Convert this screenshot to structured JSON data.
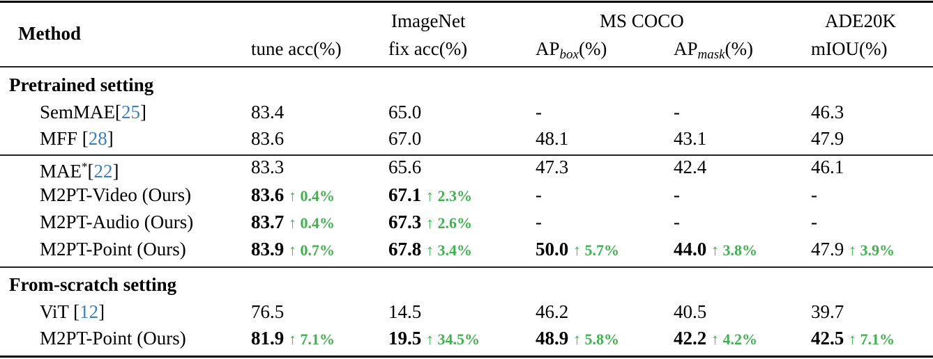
{
  "table": {
    "header": {
      "method": "Method",
      "groups": [
        {
          "label": "ImageNet"
        },
        {
          "label": "MS COCO"
        },
        {
          "label": "ADE20K"
        }
      ],
      "columns": [
        {
          "main": "tune acc",
          "sub": "",
          "unit": "(%)"
        },
        {
          "main": "fix acc",
          "sub": "",
          "unit": "(%)"
        },
        {
          "main": "AP",
          "sub": "box",
          "unit": "(%)"
        },
        {
          "main": "AP",
          "sub": "mask",
          "unit": "(%)"
        },
        {
          "main": "mIOU",
          "sub": "",
          "unit": "(%)"
        }
      ]
    },
    "sections": [
      {
        "title": "Pretrained setting",
        "rows": [
          {
            "name": "SemMAE",
            "sup": "",
            "cite": "25",
            "space": "",
            "cells": [
              {
                "v": "83.4"
              },
              {
                "v": "65.0"
              },
              {
                "v": "-"
              },
              {
                "v": "-"
              },
              {
                "v": "46.3"
              }
            ]
          },
          {
            "name": "MFF",
            "sup": "",
            "cite": "28",
            "space": " ",
            "cells": [
              {
                "v": "83.6"
              },
              {
                "v": "67.0"
              },
              {
                "v": "48.1"
              },
              {
                "v": "43.1"
              },
              {
                "v": "47.9"
              }
            ]
          },
          {
            "name": "MAE",
            "sup": "*",
            "cite": "22",
            "space": "",
            "cells": [
              {
                "v": "83.3"
              },
              {
                "v": "65.6"
              },
              {
                "v": "47.3"
              },
              {
                "v": "42.4"
              },
              {
                "v": "46.1"
              }
            ]
          },
          {
            "name": "M2PT-Video (Ours)",
            "cells": [
              {
                "v": "83.6",
                "bold": true,
                "gain": "0.4%"
              },
              {
                "v": "67.1",
                "bold": true,
                "gain": "2.3%"
              },
              {
                "v": "-"
              },
              {
                "v": "-"
              },
              {
                "v": "-"
              }
            ]
          },
          {
            "name": "M2PT-Audio (Ours)",
            "cells": [
              {
                "v": "83.7",
                "bold": true,
                "gain": "0.4%"
              },
              {
                "v": "67.3",
                "bold": true,
                "gain": "2.6%"
              },
              {
                "v": "-"
              },
              {
                "v": "-"
              },
              {
                "v": "-"
              }
            ]
          },
          {
            "name": "M2PT-Point (Ours)",
            "cells": [
              {
                "v": "83.9",
                "bold": true,
                "gain": "0.7%"
              },
              {
                "v": "67.8",
                "bold": true,
                "gain": "3.4%"
              },
              {
                "v": "50.0",
                "bold": true,
                "gain": "5.7%"
              },
              {
                "v": "44.0",
                "bold": true,
                "gain": "3.8%"
              },
              {
                "v": "47.9",
                "bold": false,
                "gain": "3.9%"
              }
            ]
          }
        ]
      },
      {
        "title": "From-scratch setting",
        "rows": [
          {
            "name": "ViT",
            "sup": "",
            "cite": "12",
            "space": " ",
            "cells": [
              {
                "v": "76.5"
              },
              {
                "v": "14.5"
              },
              {
                "v": "46.2"
              },
              {
                "v": "40.5"
              },
              {
                "v": "39.7"
              }
            ]
          },
          {
            "name": "M2PT-Point (Ours)",
            "cells": [
              {
                "v": "81.9",
                "bold": true,
                "gain": "7.1%"
              },
              {
                "v": "19.5",
                "bold": true,
                "gain": "34.5%"
              },
              {
                "v": "48.9",
                "bold": true,
                "gain": "5.8%"
              },
              {
                "v": "42.2",
                "bold": true,
                "gain": "4.2%"
              },
              {
                "v": "42.5",
                "bold": true,
                "gain": "7.1%"
              }
            ]
          }
        ]
      }
    ],
    "arrow_glyph": "↑",
    "colors": {
      "gain": "#3cb44b",
      "citation": "#3b7fc0",
      "text": "#000000"
    }
  }
}
